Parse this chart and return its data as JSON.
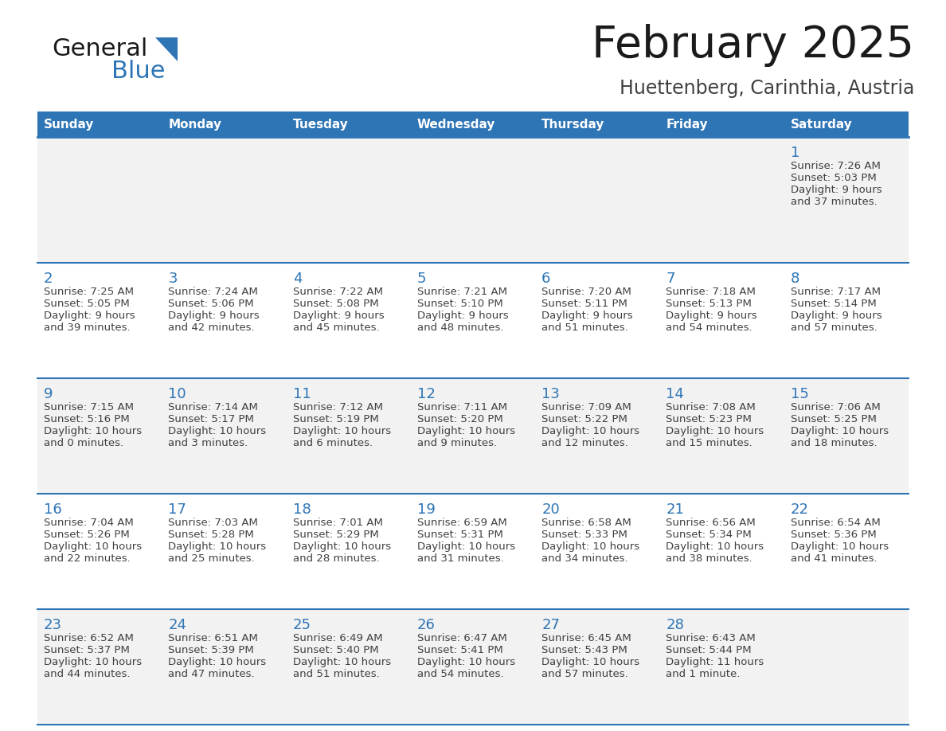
{
  "title": "February 2025",
  "subtitle": "Huettenberg, Carinthia, Austria",
  "days_of_week": [
    "Sunday",
    "Monday",
    "Tuesday",
    "Wednesday",
    "Thursday",
    "Friday",
    "Saturday"
  ],
  "header_bg": "#2E75B6",
  "header_text_color": "#FFFFFF",
  "cell_bg_odd": "#F2F2F2",
  "cell_bg_even": "#FFFFFF",
  "separator_color": "#2E75B6",
  "day_number_color": "#2E75B6",
  "text_color": "#404040",
  "title_color": "#1a1a1a",
  "logo_general_color": "#1a1a1a",
  "logo_blue_color": "#2E75B6",
  "logo_triangle_color": "#2E75B6",
  "calendar_data": [
    [
      null,
      null,
      null,
      null,
      null,
      null,
      {
        "day": "1",
        "sunrise": "7:26 AM",
        "sunset": "5:03 PM",
        "daylight1": "9 hours",
        "daylight2": "and 37 minutes."
      }
    ],
    [
      {
        "day": "2",
        "sunrise": "7:25 AM",
        "sunset": "5:05 PM",
        "daylight1": "9 hours",
        "daylight2": "and 39 minutes."
      },
      {
        "day": "3",
        "sunrise": "7:24 AM",
        "sunset": "5:06 PM",
        "daylight1": "9 hours",
        "daylight2": "and 42 minutes."
      },
      {
        "day": "4",
        "sunrise": "7:22 AM",
        "sunset": "5:08 PM",
        "daylight1": "9 hours",
        "daylight2": "and 45 minutes."
      },
      {
        "day": "5",
        "sunrise": "7:21 AM",
        "sunset": "5:10 PM",
        "daylight1": "9 hours",
        "daylight2": "and 48 minutes."
      },
      {
        "day": "6",
        "sunrise": "7:20 AM",
        "sunset": "5:11 PM",
        "daylight1": "9 hours",
        "daylight2": "and 51 minutes."
      },
      {
        "day": "7",
        "sunrise": "7:18 AM",
        "sunset": "5:13 PM",
        "daylight1": "9 hours",
        "daylight2": "and 54 minutes."
      },
      {
        "day": "8",
        "sunrise": "7:17 AM",
        "sunset": "5:14 PM",
        "daylight1": "9 hours",
        "daylight2": "and 57 minutes."
      }
    ],
    [
      {
        "day": "9",
        "sunrise": "7:15 AM",
        "sunset": "5:16 PM",
        "daylight1": "10 hours",
        "daylight2": "and 0 minutes."
      },
      {
        "day": "10",
        "sunrise": "7:14 AM",
        "sunset": "5:17 PM",
        "daylight1": "10 hours",
        "daylight2": "and 3 minutes."
      },
      {
        "day": "11",
        "sunrise": "7:12 AM",
        "sunset": "5:19 PM",
        "daylight1": "10 hours",
        "daylight2": "and 6 minutes."
      },
      {
        "day": "12",
        "sunrise": "7:11 AM",
        "sunset": "5:20 PM",
        "daylight1": "10 hours",
        "daylight2": "and 9 minutes."
      },
      {
        "day": "13",
        "sunrise": "7:09 AM",
        "sunset": "5:22 PM",
        "daylight1": "10 hours",
        "daylight2": "and 12 minutes."
      },
      {
        "day": "14",
        "sunrise": "7:08 AM",
        "sunset": "5:23 PM",
        "daylight1": "10 hours",
        "daylight2": "and 15 minutes."
      },
      {
        "day": "15",
        "sunrise": "7:06 AM",
        "sunset": "5:25 PM",
        "daylight1": "10 hours",
        "daylight2": "and 18 minutes."
      }
    ],
    [
      {
        "day": "16",
        "sunrise": "7:04 AM",
        "sunset": "5:26 PM",
        "daylight1": "10 hours",
        "daylight2": "and 22 minutes."
      },
      {
        "day": "17",
        "sunrise": "7:03 AM",
        "sunset": "5:28 PM",
        "daylight1": "10 hours",
        "daylight2": "and 25 minutes."
      },
      {
        "day": "18",
        "sunrise": "7:01 AM",
        "sunset": "5:29 PM",
        "daylight1": "10 hours",
        "daylight2": "and 28 minutes."
      },
      {
        "day": "19",
        "sunrise": "6:59 AM",
        "sunset": "5:31 PM",
        "daylight1": "10 hours",
        "daylight2": "and 31 minutes."
      },
      {
        "day": "20",
        "sunrise": "6:58 AM",
        "sunset": "5:33 PM",
        "daylight1": "10 hours",
        "daylight2": "and 34 minutes."
      },
      {
        "day": "21",
        "sunrise": "6:56 AM",
        "sunset": "5:34 PM",
        "daylight1": "10 hours",
        "daylight2": "and 38 minutes."
      },
      {
        "day": "22",
        "sunrise": "6:54 AM",
        "sunset": "5:36 PM",
        "daylight1": "10 hours",
        "daylight2": "and 41 minutes."
      }
    ],
    [
      {
        "day": "23",
        "sunrise": "6:52 AM",
        "sunset": "5:37 PM",
        "daylight1": "10 hours",
        "daylight2": "and 44 minutes."
      },
      {
        "day": "24",
        "sunrise": "6:51 AM",
        "sunset": "5:39 PM",
        "daylight1": "10 hours",
        "daylight2": "and 47 minutes."
      },
      {
        "day": "25",
        "sunrise": "6:49 AM",
        "sunset": "5:40 PM",
        "daylight1": "10 hours",
        "daylight2": "and 51 minutes."
      },
      {
        "day": "26",
        "sunrise": "6:47 AM",
        "sunset": "5:41 PM",
        "daylight1": "10 hours",
        "daylight2": "and 54 minutes."
      },
      {
        "day": "27",
        "sunrise": "6:45 AM",
        "sunset": "5:43 PM",
        "daylight1": "10 hours",
        "daylight2": "and 57 minutes."
      },
      {
        "day": "28",
        "sunrise": "6:43 AM",
        "sunset": "5:44 PM",
        "daylight1": "11 hours",
        "daylight2": "and 1 minute."
      },
      null
    ]
  ]
}
